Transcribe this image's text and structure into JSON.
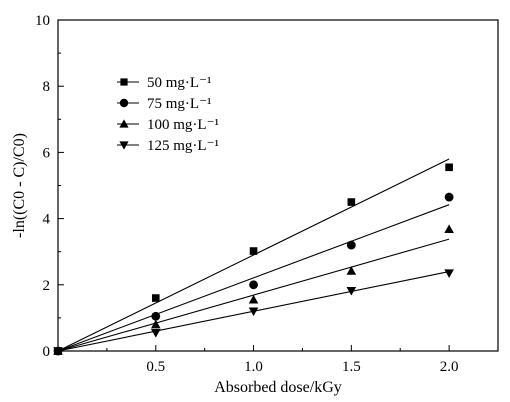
{
  "chart_data": {
    "type": "scatter",
    "title": "",
    "xlabel": "Absorbed dose/kGy",
    "ylabel": "-ln((C0 - C)/C0)",
    "xlim": [
      0,
      2.25
    ],
    "ylim": [
      0,
      10
    ],
    "xticks": [
      0.5,
      1.0,
      1.5,
      2.0
    ],
    "xtick_labels": [
      "0.5",
      "1.0",
      "1.5",
      "2.0"
    ],
    "yticks": [
      0,
      2,
      4,
      6,
      8,
      10
    ],
    "ytick_labels": [
      "0",
      "2",
      "4",
      "6",
      "8",
      "10"
    ],
    "grid": false,
    "legend_position": "top-left",
    "x": [
      0,
      0.5,
      1.0,
      1.5,
      2.0
    ],
    "series": [
      {
        "name": "50 mg·L⁻¹",
        "marker": "square",
        "values": [
          0,
          1.6,
          3.02,
          4.5,
          5.55
        ],
        "fit_end": 5.8
      },
      {
        "name": "75 mg·L⁻¹",
        "marker": "circle",
        "values": [
          0,
          1.05,
          2.0,
          3.2,
          4.65
        ],
        "fit_end": 4.42
      },
      {
        "name": "100 mg·L⁻¹",
        "marker": "triangle-up",
        "values": [
          0,
          0.8,
          1.55,
          2.42,
          3.68
        ],
        "fit_end": 3.38
      },
      {
        "name": "125 mg·L⁻¹",
        "marker": "triangle-down",
        "values": [
          0,
          0.55,
          1.2,
          1.82,
          2.35
        ],
        "fit_end": 2.4
      }
    ]
  }
}
